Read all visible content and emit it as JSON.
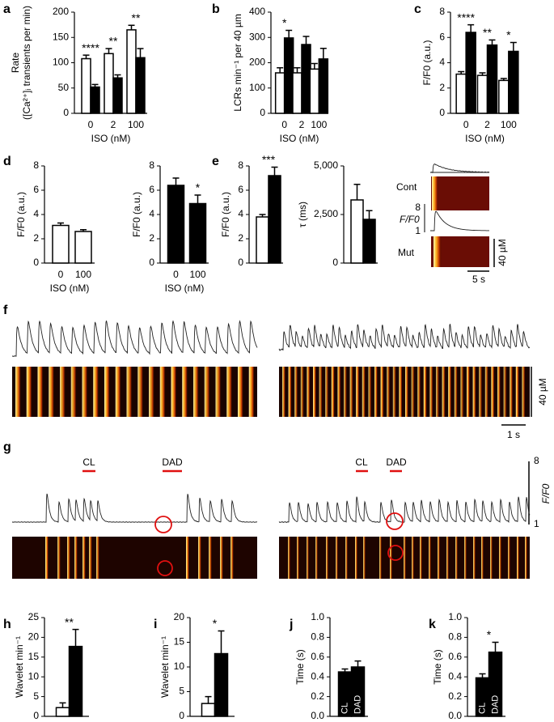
{
  "chart_data": [
    {
      "type": "bar",
      "label": "a",
      "ylabel": [
        "Rate",
        "([Ca²⁺]ᵢ transients per min)"
      ],
      "xlabel": "ISO (nM)",
      "categories": [
        "0",
        "2",
        "100"
      ],
      "series": [
        {
          "color": "#ffffff",
          "values": [
            108,
            118,
            165
          ],
          "errors": [
            7,
            10,
            9
          ]
        },
        {
          "color": "#000000",
          "values": [
            52,
            70,
            110
          ],
          "errors": [
            5,
            6,
            18
          ]
        }
      ],
      "significance": [
        "****",
        "**",
        "**"
      ],
      "ylim": [
        0,
        200
      ],
      "yticks": [
        0,
        50,
        100,
        150,
        200
      ]
    },
    {
      "type": "bar",
      "label": "b",
      "ylabel": [
        "LCRs min⁻¹ per 40 µm"
      ],
      "xlabel": "ISO (nM)",
      "categories": [
        "0",
        "2",
        "100"
      ],
      "series": [
        {
          "color": "#ffffff",
          "values": [
            160,
            160,
            175
          ],
          "errors": [
            20,
            20,
            22
          ]
        },
        {
          "color": "#000000",
          "values": [
            298,
            272,
            215
          ],
          "errors": [
            30,
            32,
            42
          ]
        }
      ],
      "significance": [
        "*",
        null,
        null
      ],
      "ylim": [
        0,
        400
      ],
      "yticks": [
        0,
        100,
        200,
        300,
        400
      ]
    },
    {
      "type": "bar",
      "label": "c",
      "ylabel": [
        "F/F0 (a.u.)"
      ],
      "xlabel": "ISO (nM)",
      "categories": [
        "0",
        "2",
        "100"
      ],
      "series": [
        {
          "color": "#ffffff",
          "values": [
            3.1,
            3.0,
            2.6
          ],
          "errors": [
            0.2,
            0.2,
            0.15
          ]
        },
        {
          "color": "#000000",
          "values": [
            6.4,
            5.4,
            4.9
          ],
          "errors": [
            0.6,
            0.4,
            0.7
          ]
        }
      ],
      "significance": [
        "****",
        "**",
        "*"
      ],
      "ylim": [
        0,
        8
      ],
      "yticks": [
        0,
        2,
        4,
        6,
        8
      ]
    },
    {
      "type": "bar",
      "label": "d",
      "ylabel": [
        "F/F0 (a.u.)"
      ],
      "xlabel": "ISO (nM)",
      "categories": [
        "0",
        "100"
      ],
      "series": [
        {
          "color": "#ffffff",
          "values": [
            3.1,
            2.6
          ],
          "errors": [
            0.2,
            0.15
          ]
        }
      ],
      "ylim": [
        0,
        8
      ],
      "yticks": [
        0,
        2,
        4,
        6,
        8
      ]
    },
    {
      "type": "bar",
      "ylabel": [
        "F/F0 (a.u.)"
      ],
      "xlabel": "ISO (nM)",
      "categories": [
        "0",
        "100"
      ],
      "series": [
        {
          "color": "#000000",
          "values": [
            6.4,
            4.9
          ],
          "errors": [
            0.6,
            0.7
          ]
        }
      ],
      "significance": [
        null,
        "*"
      ],
      "ylim": [
        0,
        8
      ],
      "yticks": [
        0,
        2,
        4,
        6,
        8
      ]
    },
    {
      "type": "bar",
      "label": "e",
      "ylabel": [
        "F/F0 (a.u.)"
      ],
      "categories": [
        null
      ],
      "series": [
        {
          "color": "#ffffff",
          "values": [
            3.8
          ],
          "errors": [
            0.2
          ]
        },
        {
          "color": "#000000",
          "values": [
            7.2
          ],
          "errors": [
            0.7
          ]
        }
      ],
      "significance": [
        "***"
      ],
      "ylim": [
        0,
        8
      ],
      "yticks": [
        0,
        2,
        4,
        6,
        8
      ]
    },
    {
      "type": "bar",
      "ylabel": [
        "τ (ms)"
      ],
      "categories": [
        null
      ],
      "series": [
        {
          "color": "#ffffff",
          "values": [
            3250
          ],
          "errors": [
            800
          ]
        },
        {
          "color": "#000000",
          "values": [
            2250
          ],
          "errors": [
            450
          ]
        }
      ],
      "ylim": [
        0,
        5000
      ],
      "yticks": [
        0,
        {
          "value": 2500,
          "label": "2,500"
        },
        {
          "value": 5000,
          "label": "5,000"
        }
      ]
    },
    {
      "type": "bar",
      "label": "h",
      "ylabel": [
        "Wavelet min⁻¹"
      ],
      "categories": [
        null
      ],
      "series": [
        {
          "color": "#ffffff",
          "values": [
            2.2
          ],
          "errors": [
            1.2
          ]
        },
        {
          "color": "#000000",
          "values": [
            17.7
          ],
          "errors": [
            4.3
          ]
        }
      ],
      "significance": [
        "**"
      ],
      "ylim": [
        0,
        25
      ],
      "yticks": [
        0,
        5,
        10,
        15,
        20,
        25
      ]
    },
    {
      "type": "bar",
      "label": "i",
      "ylabel": [
        "Wavelet min⁻¹"
      ],
      "categories": [
        null
      ],
      "series": [
        {
          "color": "#ffffff",
          "values": [
            2.6
          ],
          "errors": [
            1.4
          ]
        },
        {
          "color": "#000000",
          "values": [
            12.7
          ],
          "errors": [
            4.6
          ]
        }
      ],
      "significance": [
        "*"
      ],
      "ylim": [
        0,
        20
      ],
      "yticks": [
        0,
        5,
        10,
        15,
        20
      ]
    },
    {
      "type": "bar",
      "label": "j",
      "ylabel": [
        "Time (s)"
      ],
      "categories": [
        null
      ],
      "series": [
        {
          "name": "CL",
          "color": "#000000",
          "values": [
            0.45
          ],
          "errors": [
            0.03
          ]
        },
        {
          "name": "DAD",
          "color": "#000000",
          "values": [
            0.5
          ],
          "errors": [
            0.06
          ]
        }
      ],
      "ylim": [
        0,
        1
      ],
      "yticks": [
        {
          "value": 0,
          "label": "0.0"
        },
        0.2,
        0.4,
        0.6,
        0.8,
        {
          "value": 1,
          "label": "1.0"
        }
      ]
    },
    {
      "type": "bar",
      "label": "k",
      "ylabel": [
        "Time (s)"
      ],
      "categories": [
        null
      ],
      "series": [
        {
          "name": "CL",
          "color": "#000000",
          "values": [
            0.39
          ],
          "errors": [
            0.04
          ]
        },
        {
          "name": "DAD",
          "color": "#000000",
          "values": [
            0.65
          ],
          "errors": [
            0.1
          ]
        }
      ],
      "significance": [
        "*"
      ],
      "ylim": [
        0,
        1
      ],
      "yticks": [
        {
          "value": 0,
          "label": "0.0"
        },
        0.2,
        0.4,
        0.6,
        0.8,
        {
          "value": 1,
          "label": "1.0"
        }
      ]
    }
  ],
  "panels": {
    "e_inset": {
      "labels": [
        "Cont",
        "Mut"
      ],
      "yaxis_label": "F/F0",
      "ymax": 8,
      "ymin": 1,
      "scale_y": "40 µM",
      "scale_x": "5 s"
    },
    "f": {
      "label": "f",
      "scale_y": "40 µM",
      "scale_x": "1 s"
    },
    "g": {
      "label": "g",
      "markers": [
        "CL",
        "DAD",
        "CL",
        "DAD"
      ],
      "ymax": 8,
      "ymin": 1,
      "yaxis_label": "F/F0"
    }
  }
}
